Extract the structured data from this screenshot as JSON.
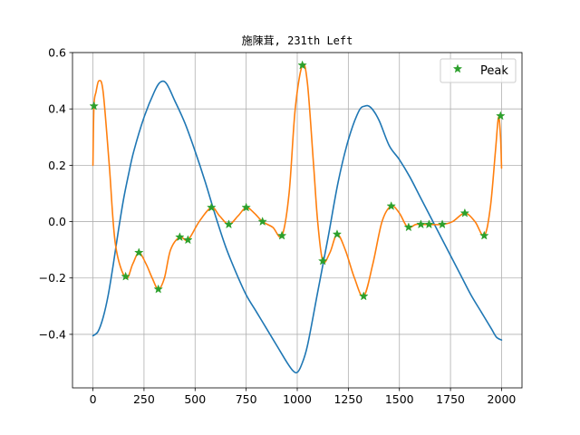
{
  "chart_data": {
    "type": "line",
    "title": "施陳茸, 231th Left",
    "xlabel": "",
    "ylabel": "",
    "xlim": [
      -100,
      2100
    ],
    "ylim": [
      -0.59,
      0.6
    ],
    "x_ticks": [
      0,
      250,
      500,
      750,
      1000,
      1250,
      1500,
      1750,
      2000
    ],
    "y_ticks": [
      -0.4,
      -0.2,
      0.0,
      0.2,
      0.4,
      0.6
    ],
    "y_tick_labels": [
      "−0.4",
      "−0.2",
      "0.0",
      "0.2",
      "0.4",
      "0.6"
    ],
    "grid": true,
    "legend_position": "top-right",
    "series": [
      {
        "name": "",
        "color": "#1f77b4",
        "x": [
          0,
          25,
          50,
          75,
          100,
          125,
          150,
          175,
          200,
          250,
          300,
          330,
          360,
          400,
          450,
          500,
          550,
          600,
          650,
          700,
          750,
          800,
          850,
          900,
          950,
          980,
          1000,
          1020,
          1050,
          1100,
          1150,
          1200,
          1250,
          1300,
          1330,
          1360,
          1400,
          1450,
          1500,
          1550,
          1600,
          1650,
          1700,
          1750,
          1800,
          1850,
          1900,
          1950,
          1975,
          2000
        ],
        "y": [
          -0.405,
          -0.39,
          -0.34,
          -0.26,
          -0.15,
          -0.03,
          0.08,
          0.17,
          0.25,
          0.37,
          0.46,
          0.495,
          0.49,
          0.43,
          0.35,
          0.25,
          0.14,
          0.02,
          -0.09,
          -0.18,
          -0.26,
          -0.32,
          -0.38,
          -0.44,
          -0.5,
          -0.53,
          -0.535,
          -0.51,
          -0.44,
          -0.25,
          -0.06,
          0.14,
          0.29,
          0.39,
          0.41,
          0.405,
          0.36,
          0.27,
          0.22,
          0.16,
          0.09,
          0.02,
          -0.05,
          -0.12,
          -0.19,
          -0.26,
          -0.32,
          -0.38,
          -0.41,
          -0.42
        ]
      },
      {
        "name": "",
        "color": "#ff7f0e",
        "x": [
          0,
          5,
          15,
          30,
          50,
          80,
          110,
          160,
          195,
          225,
          260,
          290,
          320,
          350,
          380,
          425,
          465,
          520,
          580,
          620,
          665,
          710,
          750,
          790,
          830,
          880,
          925,
          960,
          990,
          1025,
          1050,
          1080,
          1100,
          1125,
          1160,
          1195,
          1235,
          1280,
          1325,
          1370,
          1415,
          1460,
          1500,
          1540,
          1580,
          1610,
          1650,
          1710,
          1760,
          1820,
          1870,
          1915,
          1945,
          1970,
          1985,
          1995,
          2000
        ],
        "y": [
          0.2,
          0.41,
          0.46,
          0.5,
          0.46,
          0.2,
          -0.08,
          -0.2,
          -0.15,
          -0.11,
          -0.15,
          -0.2,
          -0.24,
          -0.2,
          -0.1,
          -0.055,
          -0.065,
          0.0,
          0.05,
          0.02,
          -0.01,
          0.02,
          0.05,
          0.03,
          0.0,
          -0.02,
          -0.05,
          0.1,
          0.4,
          0.555,
          0.49,
          0.2,
          0.0,
          -0.14,
          -0.11,
          -0.045,
          -0.1,
          -0.2,
          -0.265,
          -0.15,
          0.0,
          0.055,
          0.03,
          -0.02,
          -0.01,
          -0.01,
          -0.01,
          -0.01,
          0.0,
          0.03,
          0.0,
          -0.05,
          0.05,
          0.25,
          0.37,
          0.3,
          0.19
        ]
      },
      {
        "name": "Peak",
        "color": "#2ca02c",
        "x": [
          5,
          160,
          225,
          320,
          425,
          465,
          580,
          665,
          750,
          830,
          925,
          1025,
          1125,
          1195,
          1325,
          1460,
          1545,
          1605,
          1645,
          1710,
          1820,
          1915,
          1995
        ],
        "y": [
          0.41,
          -0.195,
          -0.11,
          -0.24,
          -0.055,
          -0.065,
          0.05,
          -0.01,
          0.05,
          0.0,
          -0.05,
          0.555,
          -0.14,
          -0.045,
          -0.265,
          0.055,
          -0.02,
          -0.01,
          -0.01,
          -0.01,
          0.03,
          -0.05,
          0.375
        ]
      }
    ]
  }
}
